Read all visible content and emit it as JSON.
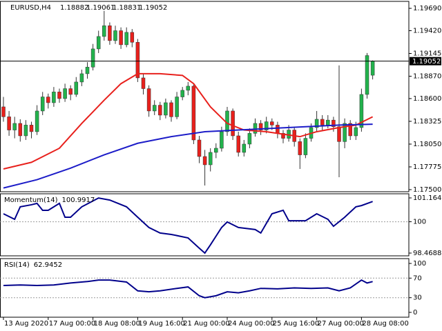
{
  "chart_data": [
    {
      "type": "candlestick",
      "title": "EURUSD,H4",
      "categories": [
        "13 Aug 2020",
        null,
        null,
        null,
        null,
        null,
        null,
        null,
        "17 Aug 00:00",
        null,
        null,
        null,
        null,
        null,
        null,
        null,
        "18 Aug 08:00",
        null,
        null,
        null,
        null,
        null,
        null,
        null,
        "19 Aug 16:00",
        null,
        null,
        null,
        null,
        null,
        null,
        null,
        "21 Aug 00:00",
        null,
        null,
        null,
        null,
        null,
        null,
        null,
        "24 Aug 00:00",
        null,
        null,
        null,
        null,
        null,
        null,
        null,
        "25 Aug 16:00",
        null,
        null,
        null,
        null,
        null,
        null,
        null,
        "27 Aug 00:00",
        null,
        null,
        null,
        null,
        null,
        null,
        null,
        "28 Aug 08:00",
        null,
        null
      ],
      "open": [
        1.185,
        1.1838,
        1.1822,
        1.183,
        1.1815,
        1.1828,
        1.182,
        1.1845,
        1.1862,
        1.1855,
        1.1868,
        1.186,
        1.1872,
        1.1865,
        1.188,
        1.189,
        1.1898,
        1.192,
        1.1935,
        1.1948,
        1.193,
        1.1942,
        1.1925,
        1.194,
        1.1928,
        1.1885,
        1.1872,
        1.1845,
        1.1852,
        1.184,
        1.1855,
        1.1838,
        1.1862,
        1.187,
        1.1875,
        1.181,
        1.179,
        1.178,
        1.1795,
        1.18,
        1.182,
        1.1845,
        1.1815,
        1.1795,
        1.1805,
        1.1818,
        1.183,
        1.1822,
        1.1832,
        1.1828,
        1.1818,
        1.1812,
        1.1822,
        1.1808,
        1.1792,
        1.1812,
        1.1825,
        1.1835,
        1.1828,
        1.1834,
        1.1826,
        1.1808,
        1.183,
        1.1815,
        1.1825,
        1.1865,
        1.18882
      ],
      "high": [
        1.1862,
        1.1845,
        1.1838,
        1.1835,
        1.1834,
        1.1832,
        1.1852,
        1.1868,
        1.1866,
        1.1874,
        1.1872,
        1.1878,
        1.1876,
        1.1886,
        1.1895,
        1.1904,
        1.1926,
        1.1942,
        1.1966,
        1.1952,
        1.1948,
        1.1946,
        1.1946,
        1.1944,
        1.1932,
        1.189,
        1.1876,
        1.1858,
        1.1856,
        1.186,
        1.1858,
        1.1868,
        1.1874,
        1.188,
        1.1878,
        1.1815,
        1.1798,
        1.18,
        1.1806,
        1.1826,
        1.185,
        1.1848,
        1.182,
        1.181,
        1.1824,
        1.1836,
        1.1834,
        1.1838,
        1.1836,
        1.1832,
        1.1822,
        1.1828,
        1.1826,
        1.1812,
        1.1818,
        1.183,
        1.1845,
        1.184,
        1.184,
        1.1838,
        1.19,
        1.1836,
        1.1834,
        1.1832,
        1.1872,
        1.1915,
        1.19061
      ],
      "low": [
        1.1832,
        1.1815,
        1.1812,
        1.1808,
        1.181,
        1.1812,
        1.1816,
        1.184,
        1.1848,
        1.185,
        1.1855,
        1.1856,
        1.1858,
        1.1862,
        1.1875,
        1.1884,
        1.1894,
        1.1915,
        1.193,
        1.1925,
        1.1926,
        1.192,
        1.1922,
        1.1922,
        1.188,
        1.1865,
        1.1838,
        1.184,
        1.1834,
        1.1836,
        1.1832,
        1.1835,
        1.1858,
        1.1864,
        1.1805,
        1.1782,
        1.1755,
        1.1772,
        1.1788,
        1.1796,
        1.1815,
        1.181,
        1.179,
        1.179,
        1.18,
        1.1814,
        1.1816,
        1.1818,
        1.1822,
        1.1812,
        1.1806,
        1.1808,
        1.1802,
        1.1775,
        1.1788,
        1.1808,
        1.182,
        1.1822,
        1.1824,
        1.182,
        1.1765,
        1.18,
        1.181,
        1.181,
        1.182,
        1.186,
        1.18831
      ],
      "close": [
        1.1838,
        1.1822,
        1.183,
        1.1815,
        1.1828,
        1.182,
        1.1845,
        1.1862,
        1.1855,
        1.1868,
        1.186,
        1.1872,
        1.1865,
        1.188,
        1.189,
        1.1898,
        1.192,
        1.1935,
        1.1948,
        1.193,
        1.1942,
        1.1925,
        1.194,
        1.1928,
        1.1885,
        1.1872,
        1.1845,
        1.1852,
        1.184,
        1.1855,
        1.1838,
        1.1862,
        1.187,
        1.1875,
        1.181,
        1.179,
        1.178,
        1.1795,
        1.18,
        1.182,
        1.1845,
        1.1815,
        1.1795,
        1.1805,
        1.1818,
        1.183,
        1.1822,
        1.1832,
        1.1828,
        1.1818,
        1.1812,
        1.1822,
        1.1808,
        1.1792,
        1.1812,
        1.1825,
        1.1835,
        1.1828,
        1.1834,
        1.1826,
        1.1808,
        1.183,
        1.1815,
        1.1825,
        1.1865,
        1.1912,
        1.19052
      ],
      "up_color": "#22b24c",
      "down_color": "#e8201c",
      "series": [
        {
          "color": "#e8201c",
          "x": [
            0,
            5,
            10,
            14,
            18,
            21,
            24,
            28,
            32,
            34,
            37,
            40,
            43,
            47,
            51,
            53,
            56,
            60,
            63,
            66
          ],
          "values": [
            1.1775,
            1.1783,
            1.18,
            1.183,
            1.1858,
            1.1878,
            1.189,
            1.189,
            1.1888,
            1.1878,
            1.185,
            1.183,
            1.1822,
            1.182,
            1.1816,
            1.1814,
            1.182,
            1.1825,
            1.1828,
            1.1838
          ]
        },
        {
          "color": "#1c1cc8",
          "x": [
            0,
            6,
            12,
            18,
            24,
            30,
            36,
            42,
            48,
            54,
            60,
            66
          ],
          "values": [
            1.1752,
            1.1762,
            1.1776,
            1.1792,
            1.1806,
            1.1814,
            1.182,
            1.1822,
            1.1824,
            1.1826,
            1.1828,
            1.1829
          ]
        }
      ],
      "current_price": 1.19052,
      "ylim": [
        1.17475,
        1.19774
      ],
      "yticks": [
        {
          "value": 1.1969,
          "label": "1.19690"
        },
        {
          "value": 1.1942,
          "label": "1.19420"
        },
        1.19145,
        {
          "value": 1.1887,
          "label": "1.18870"
        },
        {
          "value": 1.186,
          "label": "1.18600"
        },
        1.18325,
        {
          "value": 1.1805,
          "label": "1.18050"
        },
        1.17775,
        {
          "value": 1.175,
          "label": "1.17500"
        }
      ]
    },
    {
      "type": "line",
      "title": "Momentum(14)",
      "color": "#00008b",
      "x": [
        0,
        2,
        3,
        5,
        6,
        7,
        8,
        10,
        11,
        12,
        14,
        17,
        19,
        22,
        24,
        26,
        28,
        30,
        33,
        35,
        36,
        37,
        39,
        40,
        42,
        45,
        46,
        48,
        50,
        51,
        54,
        56,
        58,
        59,
        61,
        63,
        64,
        66
      ],
      "values": [
        100.39,
        100.12,
        100.73,
        100.83,
        100.9,
        100.56,
        100.56,
        100.9,
        100.22,
        100.22,
        100.73,
        101.16,
        101.06,
        100.73,
        100.22,
        99.72,
        99.45,
        99.38,
        99.21,
        98.71,
        98.47,
        98.87,
        99.72,
        99.99,
        99.72,
        99.62,
        99.45,
        100.39,
        100.56,
        100.05,
        100.05,
        100.39,
        100.12,
        99.78,
        100.22,
        100.73,
        100.79,
        100.9917
      ],
      "levels": [
        100
      ],
      "ylim": [
        98.334,
        101.367
      ],
      "yticks": [
        101.1646,
        100,
        98.4688
      ]
    },
    {
      "type": "line",
      "title": "RSI(14)",
      "color": "#00008b",
      "x": [
        0,
        3,
        6,
        9,
        12,
        15,
        17,
        19,
        22,
        24,
        26,
        28,
        31,
        33,
        35,
        36,
        38,
        40,
        42,
        44,
        46,
        49,
        52,
        55,
        58,
        60,
        62,
        64,
        65,
        66
      ],
      "values": [
        55,
        56,
        55,
        56,
        60,
        63,
        66,
        66,
        62,
        44,
        42,
        44,
        49,
        52,
        34,
        30,
        34,
        42,
        40,
        44,
        49,
        48,
        50,
        49,
        50,
        44,
        50,
        66,
        60,
        62.9452
      ],
      "levels": [
        70,
        30
      ],
      "ylim": [
        -9.9,
        109.9
      ],
      "yticks": [
        100,
        70,
        30,
        0
      ]
    }
  ]
}
